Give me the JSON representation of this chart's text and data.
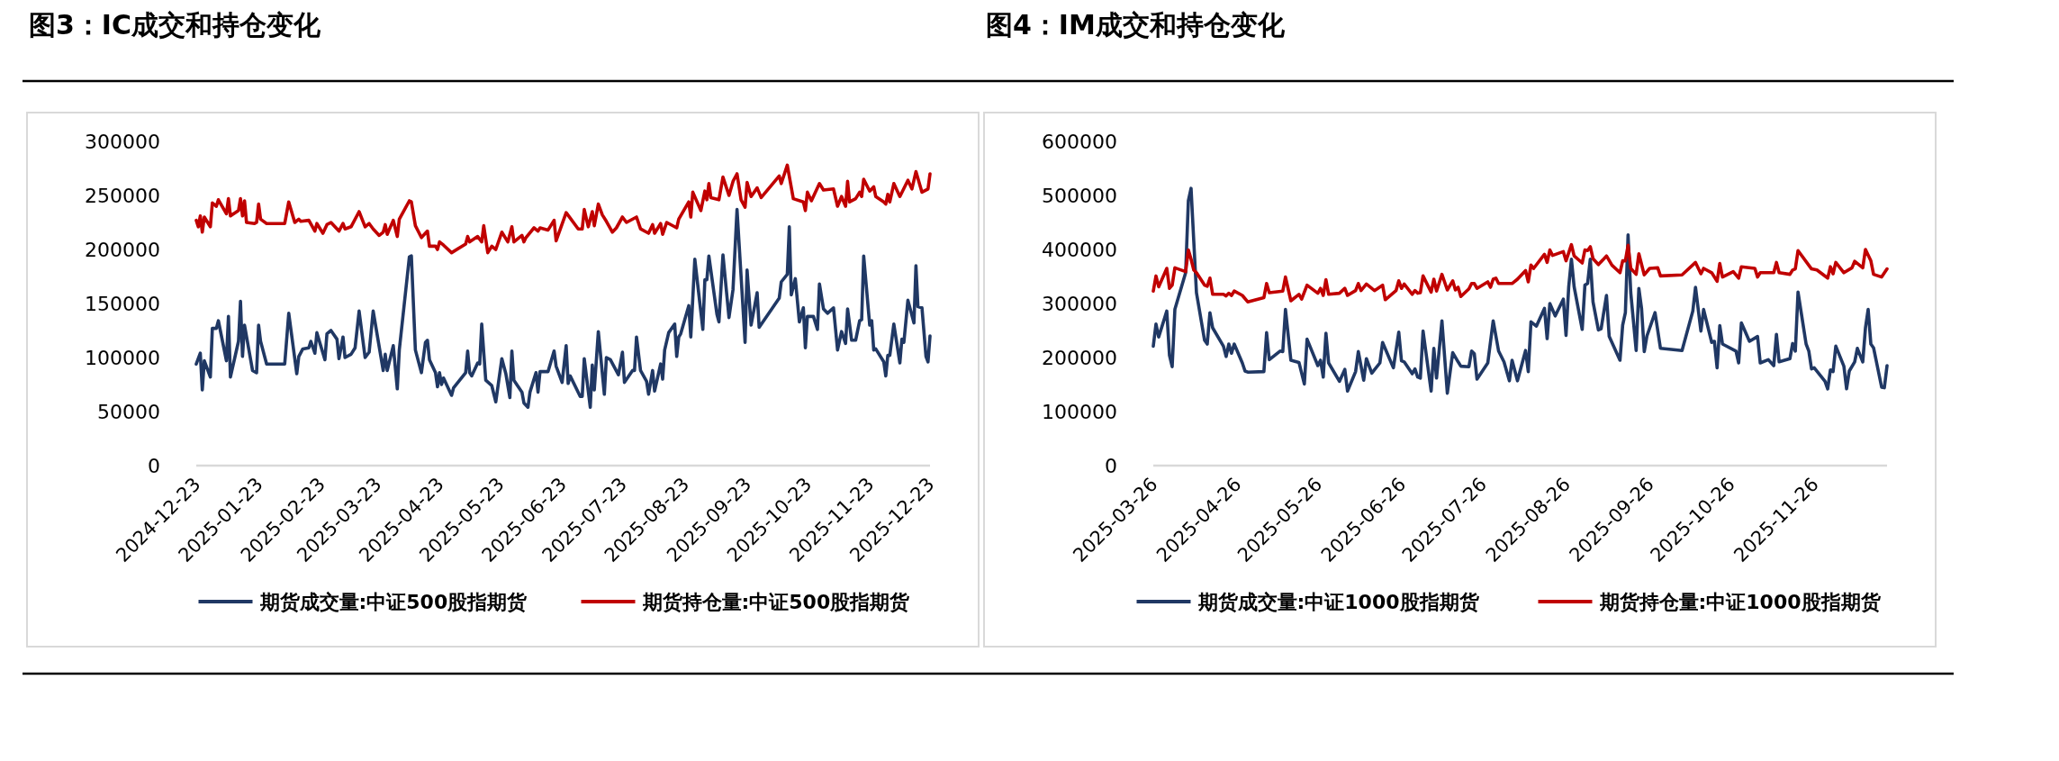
{
  "chart_data": [
    {
      "type": "line",
      "title": "图3：IC成交和持仓变化",
      "legend": "bottom",
      "grid": false,
      "xlim": [
        "2024-12-23",
        "2025-12-23"
      ],
      "xticks": [
        "2024-12-23",
        "2025-01-23",
        "2025-02-23",
        "2025-03-23",
        "2025-04-23",
        "2025-05-23",
        "2025-06-23",
        "2025-07-23",
        "2025-08-23",
        "2025-09-23",
        "2025-10-23",
        "2025-11-23",
        "2025-12-23"
      ],
      "ylim": [
        0,
        300000
      ],
      "yticks": [
        0,
        50000,
        100000,
        150000,
        200000,
        250000,
        300000
      ],
      "series": [
        {
          "name": "期货成交量:中证500股指期货",
          "color": "#203864",
          "x": [
            "2024-12-23",
            "2024-12-25",
            "2024-12-26",
            "2024-12-27",
            "2024-12-30",
            "2024-12-31",
            "2025-01-02",
            "2025-01-03",
            "2025-01-07",
            "2025-01-08",
            "2025-01-09",
            "2025-01-13",
            "2025-01-14",
            "2025-01-15",
            "2025-01-16",
            "2025-01-20",
            "2025-01-22",
            "2025-01-23",
            "2025-01-24",
            "2025-01-27",
            "2025-02-05",
            "2025-02-07",
            "2025-02-11",
            "2025-02-12",
            "2025-02-14",
            "2025-02-17",
            "2025-02-18",
            "2025-02-20",
            "2025-02-21",
            "2025-02-25",
            "2025-02-26",
            "2025-02-28",
            "2025-03-03",
            "2025-03-04",
            "2025-03-06",
            "2025-03-07",
            "2025-03-10",
            "2025-03-12",
            "2025-03-14",
            "2025-03-17",
            "2025-03-19",
            "2025-03-21",
            "2025-03-26",
            "2025-03-27",
            "2025-03-28",
            "2025-03-31",
            "2025-04-02",
            "2025-04-03",
            "2025-04-08",
            "2025-04-09",
            "2025-04-11",
            "2025-04-14",
            "2025-04-16",
            "2025-04-17",
            "2025-04-18",
            "2025-04-21",
            "2025-04-22",
            "2025-04-23",
            "2025-04-24",
            "2025-04-25",
            "2025-04-29",
            "2025-04-30",
            "2025-05-06",
            "2025-05-07",
            "2025-05-08",
            "2025-05-09",
            "2025-05-12",
            "2025-05-13",
            "2025-05-14",
            "2025-05-16",
            "2025-05-19",
            "2025-05-21",
            "2025-05-24",
            "2025-05-26",
            "2025-05-28",
            "2025-05-29",
            "2025-05-30",
            "2025-06-03",
            "2025-06-04",
            "2025-06-06",
            "2025-06-07",
            "2025-06-10",
            "2025-06-11",
            "2025-06-12",
            "2025-06-16",
            "2025-06-19",
            "2025-06-20",
            "2025-06-23",
            "2025-06-25",
            "2025-06-26",
            "2025-06-27",
            "2025-07-02",
            "2025-07-03",
            "2025-07-04",
            "2025-07-07",
            "2025-07-08",
            "2025-07-09",
            "2025-07-11",
            "2025-07-14",
            "2025-07-15",
            "2025-07-17",
            "2025-07-21",
            "2025-07-23",
            "2025-07-24",
            "2025-07-28",
            "2025-07-29",
            "2025-07-30",
            "2025-08-01",
            "2025-08-04",
            "2025-08-05",
            "2025-08-07",
            "2025-08-08",
            "2025-08-11",
            "2025-08-12",
            "2025-08-13",
            "2025-08-15",
            "2025-08-18",
            "2025-08-19",
            "2025-08-20",
            "2025-08-21",
            "2025-08-25",
            "2025-08-26",
            "2025-08-28",
            "2025-09-01",
            "2025-09-02",
            "2025-09-03",
            "2025-09-04",
            "2025-09-08",
            "2025-09-09",
            "2025-09-11",
            "2025-09-14",
            "2025-09-16",
            "2025-09-18",
            "2025-09-22",
            "2025-09-23",
            "2025-09-25",
            "2025-09-28",
            "2025-09-29",
            "2025-10-09",
            "2025-10-10",
            "2025-10-13",
            "2025-10-14",
            "2025-10-15",
            "2025-10-17",
            "2025-10-19",
            "2025-10-21",
            "2025-10-22",
            "2025-10-23",
            "2025-10-26",
            "2025-10-28",
            "2025-10-29",
            "2025-10-31",
            "2025-11-02",
            "2025-11-05",
            "2025-11-07",
            "2025-11-09",
            "2025-11-11",
            "2025-11-12",
            "2025-11-14",
            "2025-11-16",
            "2025-11-18",
            "2025-11-19",
            "2025-11-20",
            "2025-11-23",
            "2025-11-24",
            "2025-11-25",
            "2025-11-26",
            "2025-11-30",
            "2025-12-01",
            "2025-12-02",
            "2025-12-03",
            "2025-12-05",
            "2025-12-08",
            "2025-12-09",
            "2025-12-10",
            "2025-12-12",
            "2025-12-15",
            "2025-12-16",
            "2025-12-17",
            "2025-12-19",
            "2025-12-21",
            "2025-12-22",
            "2025-12-23"
          ],
          "values": [
            94000,
            104000,
            70000,
            97000,
            82000,
            127000,
            127000,
            134000,
            97000,
            138000,
            82000,
            115000,
            152000,
            101000,
            130000,
            88000,
            86000,
            130000,
            115000,
            94000,
            94000,
            141000,
            85000,
            101000,
            108000,
            109000,
            115000,
            104000,
            123000,
            98000,
            122000,
            125000,
            117000,
            99000,
            119000,
            100000,
            103000,
            109000,
            143000,
            100000,
            105000,
            143000,
            88000,
            103000,
            88000,
            111000,
            71000,
            107000,
            193000,
            194000,
            107000,
            86000,
            114000,
            116000,
            98000,
            86000,
            73000,
            86000,
            75000,
            81000,
            65000,
            72000,
            86000,
            106000,
            86000,
            83000,
            95000,
            94000,
            131000,
            79000,
            74000,
            59000,
            99000,
            85000,
            63000,
            106000,
            79000,
            68000,
            58000,
            54000,
            68000,
            86000,
            68000,
            87000,
            87000,
            106000,
            92000,
            77000,
            111000,
            76000,
            83000,
            64000,
            64000,
            99000,
            54000,
            93000,
            70000,
            124000,
            66000,
            100000,
            98000,
            84000,
            105000,
            77000,
            88000,
            88000,
            119000,
            88000,
            78000,
            66000,
            88000,
            69000,
            94000,
            80000,
            107000,
            123000,
            131000,
            101000,
            119000,
            122000,
            148000,
            119000,
            191000,
            126000,
            172000,
            172000,
            194000,
            140000,
            133000,
            195000,
            137000,
            163000,
            237000,
            114000,
            181000,
            130000,
            160000,
            128000,
            155000,
            170000,
            177000,
            221000,
            158000,
            173000,
            133000,
            146000,
            109000,
            138000,
            138000,
            126000,
            168000,
            145000,
            141000,
            146000,
            107000,
            124000,
            113000,
            145000,
            116000,
            116000,
            134000,
            135000,
            194000,
            130000,
            134000,
            107000,
            108000,
            96000,
            83000,
            102000,
            102000,
            131000,
            95000,
            117000,
            114000,
            153000,
            132000,
            185000,
            147000,
            146000,
            101000,
            96000,
            120000
          ]
        },
        {
          "name": "期货持仓量:中证500股指期货",
          "color": "#c00000",
          "x": [
            "2024-12-23",
            "2024-12-24",
            "2024-12-25",
            "2024-12-26",
            "2024-12-27",
            "2024-12-30",
            "2024-12-31",
            "2025-01-02",
            "2025-01-03",
            "2025-01-07",
            "2025-01-08",
            "2025-01-09",
            "2025-01-13",
            "2025-01-14",
            "2025-01-15",
            "2025-01-16",
            "2025-01-17",
            "2025-01-21",
            "2025-01-22",
            "2025-01-23",
            "2025-01-24",
            "2025-01-27",
            "2025-02-05",
            "2025-02-07",
            "2025-02-10",
            "2025-02-12",
            "2025-02-13",
            "2025-02-17",
            "2025-02-20",
            "2025-02-21",
            "2025-02-24",
            "2025-02-26",
            "2025-02-28",
            "2025-03-04",
            "2025-03-06",
            "2025-03-07",
            "2025-03-10",
            "2025-03-14",
            "2025-03-17",
            "2025-03-19",
            "2025-03-21",
            "2025-03-24",
            "2025-03-26",
            "2025-03-27",
            "2025-03-28",
            "2025-03-31",
            "2025-04-02",
            "2025-04-03",
            "2025-04-08",
            "2025-04-09",
            "2025-04-11",
            "2025-04-14",
            "2025-04-17",
            "2025-04-18",
            "2025-04-21",
            "2025-04-22",
            "2025-04-23",
            "2025-04-25",
            "2025-04-29",
            "2025-05-06",
            "2025-05-07",
            "2025-05-08",
            "2025-05-12",
            "2025-05-14",
            "2025-05-15",
            "2025-05-17",
            "2025-05-19",
            "2025-05-21",
            "2025-05-24",
            "2025-05-27",
            "2025-05-29",
            "2025-05-30",
            "2025-06-03",
            "2025-06-04",
            "2025-06-05",
            "2025-06-09",
            "2025-06-11",
            "2025-06-12",
            "2025-06-16",
            "2025-06-19",
            "2025-06-20",
            "2025-06-25",
            "2025-06-27",
            "2025-07-01",
            "2025-07-03",
            "2025-07-04",
            "2025-07-06",
            "2025-07-08",
            "2025-07-09",
            "2025-07-11",
            "2025-07-13",
            "2025-07-15",
            "2025-07-18",
            "2025-07-20",
            "2025-07-23",
            "2025-07-25",
            "2025-07-30",
            "2025-08-01",
            "2025-08-05",
            "2025-08-07",
            "2025-08-08",
            "2025-08-11",
            "2025-08-12",
            "2025-08-14",
            "2025-08-19",
            "2025-08-20",
            "2025-08-25",
            "2025-08-26",
            "2025-08-27",
            "2025-08-31",
            "2025-09-02",
            "2025-09-03",
            "2025-09-04",
            "2025-09-05",
            "2025-09-09",
            "2025-09-11",
            "2025-09-14",
            "2025-09-16",
            "2025-09-18",
            "2025-09-20",
            "2025-09-22",
            "2025-09-23",
            "2025-09-25",
            "2025-09-28",
            "2025-09-30",
            "2025-10-09",
            "2025-10-10",
            "2025-10-13",
            "2025-10-16",
            "2025-10-21",
            "2025-10-22",
            "2025-10-23",
            "2025-10-25",
            "2025-10-29",
            "2025-10-31",
            "2025-11-05",
            "2025-11-07",
            "2025-11-09",
            "2025-11-11",
            "2025-11-12",
            "2025-11-13",
            "2025-11-16",
            "2025-11-18",
            "2025-11-19",
            "2025-11-20",
            "2025-11-23",
            "2025-11-25",
            "2025-11-26",
            "2025-11-30",
            "2025-12-01",
            "2025-12-02",
            "2025-12-03",
            "2025-12-05",
            "2025-12-08",
            "2025-12-12",
            "2025-12-14",
            "2025-12-16",
            "2025-12-19",
            "2025-12-22",
            "2025-12-23"
          ],
          "values": [
            227000,
            221000,
            231000,
            216000,
            230000,
            221000,
            243000,
            240000,
            246000,
            233000,
            247000,
            231000,
            236000,
            247000,
            231000,
            245000,
            225000,
            224000,
            225000,
            242000,
            228000,
            224000,
            224000,
            244000,
            225000,
            228000,
            226000,
            227000,
            217000,
            224000,
            215000,
            223000,
            225000,
            217000,
            224000,
            219000,
            221000,
            235000,
            221000,
            224000,
            219000,
            213000,
            216000,
            223000,
            214000,
            227000,
            212000,
            228000,
            245000,
            244000,
            222000,
            211000,
            217000,
            203000,
            203000,
            200000,
            207000,
            204000,
            197000,
            205000,
            212000,
            207000,
            212000,
            207000,
            222000,
            197000,
            203000,
            200000,
            216000,
            207000,
            221000,
            207000,
            213000,
            207000,
            211000,
            220000,
            217000,
            220000,
            218000,
            227000,
            208000,
            234000,
            229000,
            219000,
            219000,
            237000,
            221000,
            235000,
            222000,
            242000,
            232000,
            226000,
            216000,
            220000,
            230000,
            225000,
            230000,
            219000,
            215000,
            223000,
            215000,
            224000,
            214000,
            225000,
            220000,
            228000,
            244000,
            230000,
            253000,
            236000,
            254000,
            246000,
            261000,
            248000,
            246000,
            267000,
            250000,
            263000,
            270000,
            246000,
            239000,
            262000,
            249000,
            257000,
            248000,
            268000,
            261000,
            278000,
            247000,
            244000,
            236000,
            253000,
            245000,
            261000,
            255000,
            256000,
            240000,
            249000,
            240000,
            263000,
            244000,
            247000,
            253000,
            249000,
            265000,
            254000,
            258000,
            249000,
            244000,
            242000,
            251000,
            244000,
            261000,
            249000,
            264000,
            256000,
            272000,
            253000,
            256000,
            270000
          ]
        }
      ]
    },
    {
      "type": "line",
      "title": "图4：IM成交和持仓变化",
      "legend": "bottom",
      "grid": false,
      "xlim": [
        "2025-03-26",
        "2025-12-23"
      ],
      "xticks": [
        "2025-03-26",
        "2025-04-26",
        "2025-05-26",
        "2025-06-26",
        "2025-07-26",
        "2025-08-26",
        "2025-09-26",
        "2025-10-26",
        "2025-11-26"
      ],
      "ylim": [
        0,
        600000
      ],
      "yticks": [
        0,
        100000,
        200000,
        300000,
        400000,
        500000,
        600000
      ],
      "series": [
        {
          "name": "期货成交量:中证1000股指期货",
          "color": "#203864",
          "x": [
            "2025-03-26",
            "2025-03-27",
            "2025-03-28",
            "2025-03-31",
            "2025-04-01",
            "2025-04-02",
            "2025-04-03",
            "2025-04-07",
            "2025-04-08",
            "2025-04-09",
            "2025-04-10",
            "2025-04-11",
            "2025-04-14",
            "2025-04-15",
            "2025-04-16",
            "2025-04-17",
            "2025-04-21",
            "2025-04-22",
            "2025-04-23",
            "2025-04-24",
            "2025-04-25",
            "2025-04-28",
            "2025-04-29",
            "2025-04-30",
            "2025-05-06",
            "2025-05-07",
            "2025-05-08",
            "2025-05-12",
            "2025-05-13",
            "2025-05-14",
            "2025-05-16",
            "2025-05-19",
            "2025-05-21",
            "2025-05-22",
            "2025-05-26",
            "2025-05-27",
            "2025-05-28",
            "2025-05-29",
            "2025-05-30",
            "2025-06-03",
            "2025-06-05",
            "2025-06-06",
            "2025-06-09",
            "2025-06-10",
            "2025-06-12",
            "2025-06-13",
            "2025-06-15",
            "2025-06-18",
            "2025-06-19",
            "2025-06-23",
            "2025-06-25",
            "2025-06-26",
            "2025-06-27",
            "2025-06-30",
            "2025-07-01",
            "2025-07-02",
            "2025-07-03",
            "2025-07-04",
            "2025-07-07",
            "2025-07-08",
            "2025-07-09",
            "2025-07-11",
            "2025-07-13",
            "2025-07-15",
            "2025-07-17",
            "2025-07-18",
            "2025-07-21",
            "2025-07-22",
            "2025-07-23",
            "2025-07-24",
            "2025-07-28",
            "2025-07-30",
            "2025-08-01",
            "2025-08-03",
            "2025-08-05",
            "2025-08-06",
            "2025-08-08",
            "2025-08-11",
            "2025-08-12",
            "2025-08-13",
            "2025-08-15",
            "2025-08-18",
            "2025-08-19",
            "2025-08-20",
            "2025-08-22",
            "2025-08-25",
            "2025-08-26",
            "2025-08-27",
            "2025-08-28",
            "2025-08-29",
            "2025-09-01",
            "2025-09-02",
            "2025-09-03",
            "2025-09-04",
            "2025-09-05",
            "2025-09-07",
            "2025-09-08",
            "2025-09-10",
            "2025-09-11",
            "2025-09-15",
            "2025-09-16",
            "2025-09-17",
            "2025-09-18",
            "2025-09-19",
            "2025-09-21",
            "2025-09-22",
            "2025-09-23",
            "2025-09-24",
            "2025-09-25",
            "2025-09-28",
            "2025-09-30",
            "2025-10-08",
            "2025-10-12",
            "2025-10-13",
            "2025-10-15",
            "2025-10-16",
            "2025-10-19",
            "2025-10-20",
            "2025-10-21",
            "2025-10-22",
            "2025-10-23",
            "2025-10-28",
            "2025-10-29",
            "2025-10-30",
            "2025-10-31",
            "2025-11-02",
            "2025-11-05",
            "2025-11-06",
            "2025-11-09",
            "2025-11-11",
            "2025-11-12",
            "2025-11-13",
            "2025-11-17",
            "2025-11-18",
            "2025-11-19",
            "2025-11-20",
            "2025-11-23",
            "2025-11-24",
            "2025-11-25",
            "2025-11-26",
            "2025-11-30",
            "2025-12-01",
            "2025-12-02",
            "2025-12-03",
            "2025-12-04",
            "2025-12-07",
            "2025-12-08",
            "2025-12-09",
            "2025-12-11",
            "2025-12-12",
            "2025-12-14",
            "2025-12-15",
            "2025-12-16",
            "2025-12-17",
            "2025-12-18",
            "2025-12-21",
            "2025-12-22",
            "2025-12-23"
          ],
          "values": [
            221000,
            262000,
            238000,
            286000,
            204000,
            183000,
            289000,
            357000,
            490000,
            513000,
            416000,
            320000,
            232000,
            225000,
            283000,
            255000,
            221000,
            202000,
            225000,
            208000,
            225000,
            190000,
            175000,
            173000,
            174000,
            246000,
            196000,
            212000,
            211000,
            289000,
            195000,
            191000,
            151000,
            234000,
            185000,
            195000,
            164000,
            245000,
            190000,
            156000,
            178000,
            138000,
            174000,
            211000,
            158000,
            198000,
            171000,
            190000,
            228000,
            181000,
            247000,
            194000,
            192000,
            170000,
            179000,
            164000,
            162000,
            249000,
            138000,
            217000,
            162000,
            268000,
            134000,
            209000,
            192000,
            184000,
            183000,
            212000,
            207000,
            160000,
            190000,
            268000,
            212000,
            192000,
            157000,
            195000,
            157000,
            213000,
            174000,
            266000,
            258000,
            291000,
            235000,
            300000,
            277000,
            308000,
            241000,
            331000,
            382000,
            331000,
            252000,
            334000,
            337000,
            382000,
            303000,
            251000,
            253000,
            315000,
            239000,
            195000,
            260000,
            283000,
            427000,
            320000,
            213000,
            328000,
            291000,
            211000,
            240000,
            283000,
            217000,
            213000,
            286000,
            330000,
            249000,
            289000,
            228000,
            230000,
            181000,
            259000,
            225000,
            212000,
            190000,
            264000,
            253000,
            230000,
            239000,
            190000,
            196000,
            185000,
            243000,
            192000,
            198000,
            226000,
            212000,
            321000,
            225000,
            212000,
            179000,
            181000,
            156000,
            142000,
            177000,
            174000,
            221000,
            184000,
            142000,
            175000,
            192000,
            217000,
            192000,
            255000,
            289000,
            225000,
            218000,
            145000,
            144000,
            185000
          ]
        },
        {
          "name": "期货持仓量:中证1000股指期货",
          "color": "#c00000",
          "x": [
            "2025-03-26",
            "2025-03-27",
            "2025-03-28",
            "2025-03-31",
            "2025-04-01",
            "2025-04-02",
            "2025-04-03",
            "2025-04-07",
            "2025-04-08",
            "2025-04-09",
            "2025-04-10",
            "2025-04-11",
            "2025-04-14",
            "2025-04-15",
            "2025-04-16",
            "2025-04-17",
            "2025-04-21",
            "2025-04-22",
            "2025-04-23",
            "2025-04-24",
            "2025-04-25",
            "2025-04-28",
            "2025-04-30",
            "2025-05-06",
            "2025-05-07",
            "2025-05-08",
            "2025-05-13",
            "2025-05-14",
            "2025-05-16",
            "2025-05-19",
            "2025-05-20",
            "2025-05-22",
            "2025-05-26",
            "2025-05-27",
            "2025-05-28",
            "2025-05-29",
            "2025-05-30",
            "2025-06-03",
            "2025-06-05",
            "2025-06-06",
            "2025-06-09",
            "2025-06-10",
            "2025-06-11",
            "2025-06-13",
            "2025-06-16",
            "2025-06-17",
            "2025-06-19",
            "2025-06-20",
            "2025-06-24",
            "2025-06-25",
            "2025-06-26",
            "2025-06-27",
            "2025-06-30",
            "2025-07-01",
            "2025-07-02",
            "2025-07-03",
            "2025-07-04",
            "2025-07-07",
            "2025-07-08",
            "2025-07-09",
            "2025-07-11",
            "2025-07-13",
            "2025-07-15",
            "2025-07-16",
            "2025-07-17",
            "2025-07-18",
            "2025-07-21",
            "2025-07-22",
            "2025-07-23",
            "2025-07-24",
            "2025-07-28",
            "2025-07-29",
            "2025-07-30",
            "2025-07-31",
            "2025-08-01",
            "2025-08-06",
            "2025-08-08",
            "2025-08-11",
            "2025-08-12",
            "2025-08-13",
            "2025-08-14",
            "2025-08-18",
            "2025-08-19",
            "2025-08-20",
            "2025-08-21",
            "2025-08-25",
            "2025-08-26",
            "2025-08-28",
            "2025-08-29",
            "2025-09-01",
            "2025-09-02",
            "2025-09-03",
            "2025-09-04",
            "2025-09-05",
            "2025-09-07",
            "2025-09-10",
            "2025-09-12",
            "2025-09-15",
            "2025-09-16",
            "2025-09-17",
            "2025-09-18",
            "2025-09-19",
            "2025-09-21",
            "2025-09-22",
            "2025-09-24",
            "2025-09-26",
            "2025-09-29",
            "2025-09-30",
            "2025-10-08",
            "2025-10-13",
            "2025-10-15",
            "2025-10-16",
            "2025-10-19",
            "2025-10-21",
            "2025-10-22",
            "2025-10-23",
            "2025-10-27",
            "2025-10-29",
            "2025-10-30",
            "2025-11-04",
            "2025-11-05",
            "2025-11-06",
            "2025-11-11",
            "2025-11-12",
            "2025-11-13",
            "2025-11-17",
            "2025-11-18",
            "2025-11-19",
            "2025-11-20",
            "2025-11-25",
            "2025-11-27",
            "2025-12-01",
            "2025-12-02",
            "2025-12-03",
            "2025-12-04",
            "2025-12-07",
            "2025-12-10",
            "2025-12-11",
            "2025-12-14",
            "2025-12-15",
            "2025-12-17",
            "2025-12-18",
            "2025-12-21",
            "2025-12-23"
          ],
          "values": [
            323000,
            351000,
            331000,
            365000,
            328000,
            334000,
            366000,
            359000,
            399000,
            382000,
            362000,
            357000,
            334000,
            332000,
            347000,
            317000,
            317000,
            314000,
            319000,
            315000,
            323000,
            315000,
            303000,
            311000,
            337000,
            320000,
            323000,
            349000,
            305000,
            317000,
            308000,
            334000,
            319000,
            328000,
            315000,
            344000,
            317000,
            319000,
            328000,
            315000,
            324000,
            337000,
            324000,
            336000,
            324000,
            327000,
            334000,
            307000,
            324000,
            342000,
            328000,
            336000,
            317000,
            324000,
            319000,
            320000,
            351000,
            321000,
            345000,
            323000,
            354000,
            325000,
            342000,
            325000,
            330000,
            313000,
            327000,
            337000,
            337000,
            328000,
            340000,
            330000,
            345000,
            347000,
            337000,
            337000,
            345000,
            361000,
            340000,
            371000,
            365000,
            391000,
            376000,
            399000,
            389000,
            396000,
            379000,
            409000,
            388000,
            375000,
            399000,
            398000,
            405000,
            383000,
            372000,
            388000,
            371000,
            357000,
            379000,
            379000,
            408000,
            365000,
            354000,
            392000,
            353000,
            365000,
            366000,
            351000,
            353000,
            376000,
            355000,
            365000,
            357000,
            341000,
            374000,
            349000,
            359000,
            347000,
            368000,
            365000,
            349000,
            357000,
            357000,
            376000,
            357000,
            354000,
            362000,
            364000,
            398000,
            364000,
            362000,
            347000,
            368000,
            355000,
            376000,
            357000,
            366000,
            378000,
            366000,
            400000,
            379000,
            354000,
            349000,
            364000
          ]
        }
      ]
    }
  ]
}
